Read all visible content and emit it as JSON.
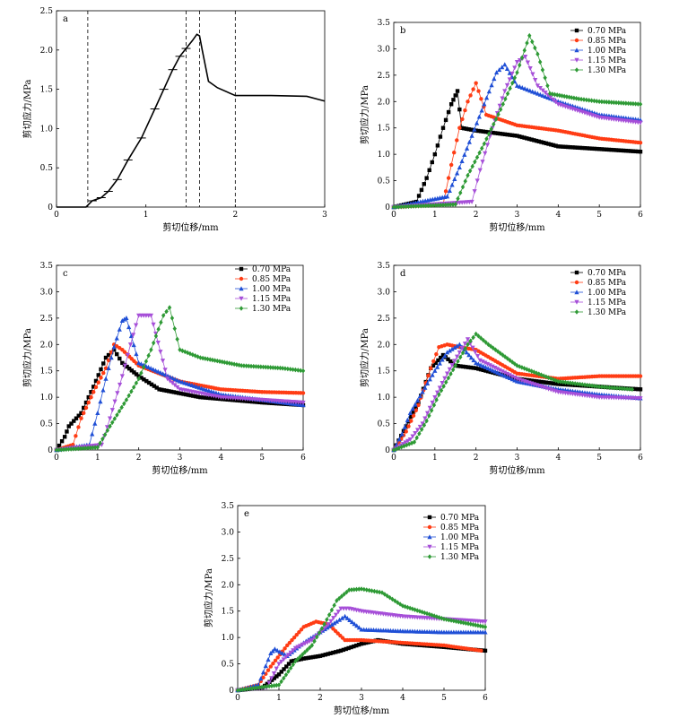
{
  "figure": {
    "panels": [
      "a",
      "b",
      "c",
      "d",
      "e"
    ],
    "xlabel": "剪切位移/mm",
    "ylabel": "剪切应力/MPa"
  },
  "colors": {
    "0.70 MPa": "#000000",
    "0.85 MPa": "#ff3c14",
    "1.00 MPa": "#1f4fd6",
    "1.15 MPa": "#a64fd8",
    "1.30 MPa": "#2e9a35"
  },
  "chart_data": [
    {
      "type": "line",
      "panel": "a",
      "xlabel": "剪切位移/mm",
      "ylabel": "剪切应力/MPa",
      "xlim": [
        0,
        3
      ],
      "ylim": [
        0,
        2.5
      ],
      "xticks": [
        "0",
        "1",
        "2",
        "3"
      ],
      "yticks": [
        "0",
        "0.5",
        "1.0",
        "1.5",
        "2.0",
        "2.5"
      ],
      "dashed_vlines": [
        0.35,
        1.45,
        1.6,
        2.0
      ],
      "series": [
        {
          "x": [
            0,
            0.33,
            0.4,
            0.5,
            0.58,
            0.68,
            0.8,
            0.95,
            1.1,
            1.2,
            1.3,
            1.38,
            1.45,
            1.52,
            1.57,
            1.6,
            1.63,
            1.7,
            1.8,
            2.0,
            2.4,
            2.8,
            3.0
          ],
          "y": [
            0,
            0,
            0.08,
            0.12,
            0.2,
            0.35,
            0.6,
            0.88,
            1.25,
            1.5,
            1.75,
            1.92,
            2.02,
            2.12,
            2.2,
            2.18,
            2.0,
            1.6,
            1.52,
            1.42,
            1.42,
            1.41,
            1.35
          ]
        }
      ]
    },
    {
      "type": "scatter",
      "panel": "b",
      "xlabel": "剪切位移/mm",
      "ylabel": "剪切应力/MPa",
      "xlim": [
        0,
        6
      ],
      "ylim": [
        0,
        3.5
      ],
      "xticks": [
        "0",
        "1",
        "2",
        "3",
        "4",
        "5",
        "6"
      ],
      "yticks": [
        "0",
        "0.5",
        "1.0",
        "1.5",
        "2.0",
        "2.5",
        "3.0",
        "3.5"
      ],
      "legend": "top-right",
      "series": [
        {
          "name": "0.70 MPa",
          "marker": "square",
          "x": [
            0.0,
            0.55,
            0.8,
            1.0,
            1.2,
            1.4,
            1.55,
            1.65,
            2.0,
            3.0,
            4.0,
            5.0,
            6.0
          ],
          "y": [
            0.0,
            0.1,
            0.55,
            1.0,
            1.5,
            1.95,
            2.2,
            1.5,
            1.45,
            1.35,
            1.15,
            1.1,
            1.05
          ]
        },
        {
          "name": "0.85 MPa",
          "marker": "circle",
          "x": [
            0.0,
            1.2,
            1.4,
            1.6,
            1.8,
            2.0,
            2.25,
            3.0,
            4.0,
            5.0,
            6.0
          ],
          "y": [
            0.0,
            0.05,
            0.8,
            1.5,
            2.0,
            2.35,
            1.75,
            1.55,
            1.45,
            1.3,
            1.22
          ]
        },
        {
          "name": "1.00 MPa",
          "marker": "triangle-up",
          "x": [
            0.0,
            1.3,
            1.6,
            1.9,
            2.2,
            2.5,
            2.7,
            3.0,
            3.5,
            4.0,
            5.0,
            6.0
          ],
          "y": [
            0.0,
            0.2,
            0.75,
            1.35,
            1.95,
            2.55,
            2.7,
            2.3,
            2.15,
            2.0,
            1.75,
            1.65
          ]
        },
        {
          "name": "1.15 MPa",
          "marker": "triangle-down",
          "x": [
            0.0,
            1.9,
            2.1,
            2.4,
            2.7,
            3.0,
            3.2,
            3.5,
            4.0,
            5.0,
            6.0
          ],
          "y": [
            0.0,
            0.1,
            0.7,
            1.5,
            2.2,
            2.75,
            2.85,
            2.3,
            1.95,
            1.7,
            1.6
          ]
        },
        {
          "name": "1.30 MPa",
          "marker": "diamond",
          "x": [
            0.0,
            1.5,
            1.8,
            2.2,
            2.6,
            3.0,
            3.3,
            3.5,
            3.8,
            4.5,
            5.0,
            6.0
          ],
          "y": [
            0.0,
            0.05,
            0.6,
            1.2,
            1.85,
            2.55,
            3.25,
            2.9,
            2.15,
            2.05,
            2.0,
            1.95
          ]
        }
      ]
    },
    {
      "type": "scatter",
      "panel": "c",
      "xlabel": "剪切位移/mm",
      "ylabel": "剪切应力/MPa",
      "xlim": [
        0,
        6
      ],
      "ylim": [
        0,
        3.5
      ],
      "xticks": [
        "0",
        "1",
        "2",
        "3",
        "4",
        "5",
        "6"
      ],
      "yticks": [
        "0",
        "0.5",
        "1.0",
        "1.5",
        "2.0",
        "2.5",
        "3.0",
        "3.5"
      ],
      "legend": "top-right",
      "series": [
        {
          "name": "0.70 MPa",
          "marker": "square",
          "x": [
            0.0,
            0.2,
            0.3,
            0.6,
            0.9,
            1.2,
            1.4,
            1.6,
            2.0,
            2.5,
            3.5,
            5.0,
            6.0
          ],
          "y": [
            0.0,
            0.25,
            0.45,
            0.7,
            1.2,
            1.75,
            1.9,
            1.65,
            1.4,
            1.15,
            1.0,
            0.9,
            0.85
          ]
        },
        {
          "name": "0.85 MPa",
          "marker": "circle",
          "x": [
            0.0,
            0.4,
            0.6,
            0.9,
            1.2,
            1.4,
            1.6,
            2.0,
            3.0,
            4.0,
            5.0,
            6.0
          ],
          "y": [
            0.0,
            0.1,
            0.6,
            1.1,
            1.55,
            2.0,
            1.9,
            1.6,
            1.3,
            1.15,
            1.1,
            1.08
          ]
        },
        {
          "name": "1.00 MPa",
          "marker": "triangle-up",
          "x": [
            0.0,
            0.8,
            1.0,
            1.2,
            1.4,
            1.6,
            1.7,
            2.0,
            3.0,
            4.0,
            5.0,
            6.0
          ],
          "y": [
            0.0,
            0.1,
            0.7,
            1.35,
            1.95,
            2.45,
            2.5,
            1.65,
            1.3,
            1.05,
            0.95,
            0.85
          ]
        },
        {
          "name": "1.15 MPa",
          "marker": "triangle-down",
          "x": [
            0.0,
            1.1,
            1.3,
            1.6,
            1.8,
            2.0,
            2.3,
            2.7,
            3.0,
            4.0,
            5.0,
            6.0
          ],
          "y": [
            0.0,
            0.1,
            0.6,
            1.4,
            2.0,
            2.55,
            2.55,
            1.35,
            1.15,
            1.0,
            0.95,
            0.9
          ]
        },
        {
          "name": "1.30 MPa",
          "marker": "diamond",
          "x": [
            0.0,
            1.0,
            1.3,
            1.7,
            2.0,
            2.3,
            2.6,
            2.75,
            3.0,
            3.5,
            4.5,
            5.5,
            6.0
          ],
          "y": [
            0.0,
            0.05,
            0.45,
            0.95,
            1.35,
            1.9,
            2.55,
            2.7,
            1.9,
            1.75,
            1.6,
            1.55,
            1.5
          ]
        }
      ]
    },
    {
      "type": "scatter",
      "panel": "d",
      "xlabel": "剪切位移/mm",
      "ylabel": "剪切应力/MPa",
      "xlim": [
        0,
        6
      ],
      "ylim": [
        0,
        3.5
      ],
      "xticks": [
        "0",
        "1",
        "2",
        "3",
        "4",
        "5",
        "6"
      ],
      "yticks": [
        "0",
        "0.5",
        "1.0",
        "1.5",
        "2.0",
        "2.5",
        "3.0",
        "3.5"
      ],
      "legend": "top-right",
      "series": [
        {
          "name": "0.70 MPa",
          "marker": "square",
          "x": [
            0.0,
            0.3,
            0.6,
            0.9,
            1.2,
            1.5,
            2.0,
            3.0,
            4.0,
            5.0,
            6.0
          ],
          "y": [
            0.0,
            0.45,
            0.9,
            1.55,
            1.8,
            1.6,
            1.55,
            1.35,
            1.25,
            1.2,
            1.15
          ]
        },
        {
          "name": "0.85 MPa",
          "marker": "circle",
          "x": [
            0.0,
            0.3,
            0.6,
            0.9,
            1.1,
            1.3,
            1.6,
            2.0,
            3.0,
            4.0,
            5.0,
            6.0
          ],
          "y": [
            0.0,
            0.35,
            0.85,
            1.55,
            1.95,
            2.0,
            1.95,
            1.9,
            1.45,
            1.35,
            1.4,
            1.4
          ]
        },
        {
          "name": "1.00 MPa",
          "marker": "triangle-up",
          "x": [
            0.0,
            0.2,
            0.4,
            0.7,
            1.0,
            1.3,
            1.6,
            2.0,
            3.0,
            4.0,
            5.0,
            6.0
          ],
          "y": [
            0.0,
            0.3,
            0.7,
            1.1,
            1.5,
            1.85,
            2.0,
            1.65,
            1.3,
            1.15,
            1.05,
            0.98
          ]
        },
        {
          "name": "1.15 MPa",
          "marker": "triangle-down",
          "x": [
            0.0,
            0.4,
            0.7,
            1.0,
            1.3,
            1.6,
            1.8,
            2.1,
            3.0,
            4.0,
            5.0,
            6.0
          ],
          "y": [
            0.0,
            0.2,
            0.5,
            1.0,
            1.45,
            1.85,
            2.1,
            1.7,
            1.35,
            1.1,
            1.0,
            0.98
          ]
        },
        {
          "name": "1.30 MPa",
          "marker": "diamond",
          "x": [
            0.0,
            0.5,
            0.8,
            1.1,
            1.5,
            1.8,
            2.0,
            2.3,
            3.0,
            4.0,
            5.0,
            5.8
          ],
          "y": [
            0.0,
            0.15,
            0.55,
            1.05,
            1.6,
            2.0,
            2.2,
            2.0,
            1.6,
            1.3,
            1.2,
            1.15
          ]
        }
      ]
    },
    {
      "type": "scatter",
      "panel": "e",
      "xlabel": "剪切位移/mm",
      "ylabel": "剪切应力/MPa",
      "xlim": [
        0,
        6
      ],
      "ylim": [
        0,
        3.5
      ],
      "xticks": [
        "0",
        "1",
        "2",
        "3",
        "4",
        "5",
        "6"
      ],
      "yticks": [
        "0",
        "0.5",
        "1.0",
        "1.5",
        "2.0",
        "2.5",
        "3.0",
        "3.5"
      ],
      "legend": "top-center",
      "series": [
        {
          "name": "0.70 MPa",
          "marker": "square",
          "x": [
            0.0,
            0.6,
            1.0,
            1.3,
            1.6,
            2.0,
            2.5,
            3.0,
            3.4,
            4.0,
            5.0,
            6.0
          ],
          "y": [
            0.0,
            0.05,
            0.3,
            0.55,
            0.6,
            0.65,
            0.75,
            0.88,
            0.95,
            0.88,
            0.82,
            0.75
          ]
        },
        {
          "name": "0.85 MPa",
          "marker": "circle",
          "x": [
            0.0,
            0.5,
            0.8,
            1.2,
            1.6,
            1.9,
            2.2,
            2.6,
            3.0,
            4.0,
            5.0,
            5.9
          ],
          "y": [
            0.0,
            0.1,
            0.45,
            0.85,
            1.2,
            1.3,
            1.25,
            0.95,
            0.95,
            0.9,
            0.85,
            0.75
          ]
        },
        {
          "name": "1.00 MPa",
          "marker": "triangle-up",
          "x": [
            0.0,
            0.5,
            0.8,
            0.9,
            1.2,
            1.6,
            2.0,
            2.4,
            2.6,
            3.0,
            4.0,
            5.0,
            6.0
          ],
          "y": [
            0.0,
            0.1,
            0.7,
            0.78,
            0.65,
            0.9,
            1.1,
            1.3,
            1.4,
            1.15,
            1.12,
            1.1,
            1.1
          ]
        },
        {
          "name": "1.15 MPa",
          "marker": "triangle-down",
          "x": [
            0.0,
            0.7,
            1.0,
            1.4,
            1.8,
            2.2,
            2.5,
            2.7,
            3.0,
            4.0,
            5.0,
            6.0
          ],
          "y": [
            0.0,
            0.05,
            0.5,
            0.8,
            0.95,
            1.25,
            1.55,
            1.55,
            1.5,
            1.4,
            1.35,
            1.3
          ]
        },
        {
          "name": "1.30 MPa",
          "marker": "diamond",
          "x": [
            0.0,
            1.0,
            1.4,
            1.8,
            2.1,
            2.4,
            2.7,
            3.0,
            3.5,
            4.0,
            5.0,
            6.0
          ],
          "y": [
            0.0,
            0.1,
            0.55,
            0.85,
            1.25,
            1.7,
            1.9,
            1.92,
            1.85,
            1.6,
            1.35,
            1.2
          ]
        }
      ]
    }
  ]
}
